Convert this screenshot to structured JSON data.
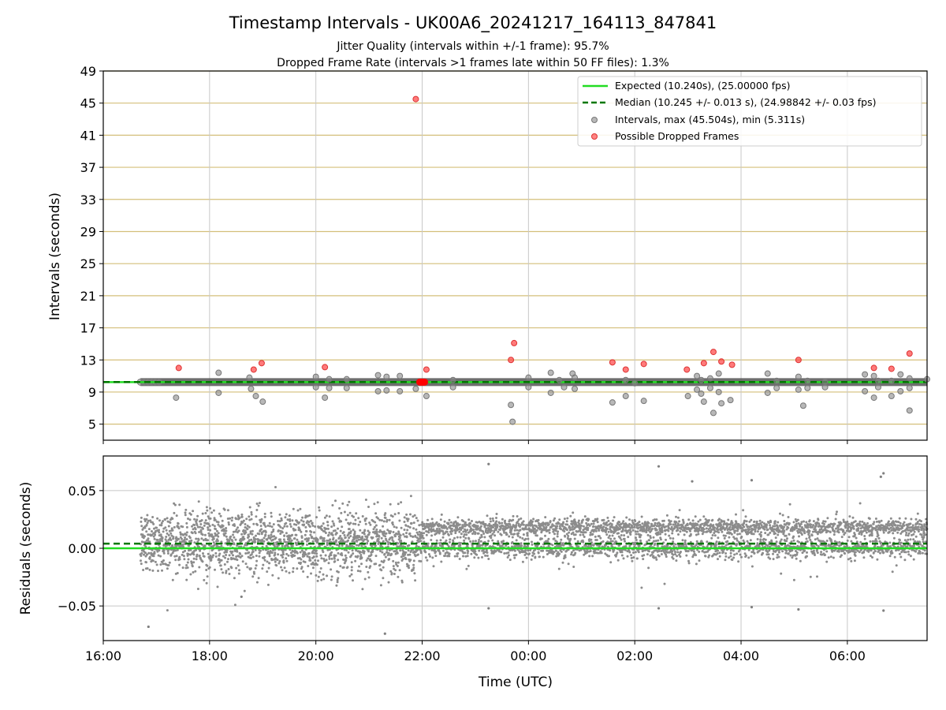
{
  "chart_data": {
    "title": "Timestamp Intervals - UK00A6_20241217_164113_847841",
    "subtitles": [
      "Jitter Quality (intervals within +/-1 frame): 95.7%",
      "Dropped Frame Rate (intervals >1 frames late within 50 FF files): 1.3%"
    ],
    "xlabel": "Time (UTC)",
    "x_tick_labels": [
      "16:00",
      "18:00",
      "20:00",
      "22:00",
      "00:00",
      "02:00",
      "04:00",
      "06:00"
    ],
    "x_tick_hours": [
      0,
      2,
      4,
      6,
      8,
      10,
      12,
      14
    ],
    "x_range_hours": [
      0,
      15.5
    ],
    "x_origin": "2024-12-17 16:00 UTC",
    "top": {
      "type": "scatter",
      "ylabel": "Intervals (seconds)",
      "ylim": [
        3,
        49
      ],
      "y_ticks": [
        5,
        9,
        13,
        17,
        21,
        25,
        29,
        33,
        37,
        41,
        45,
        49
      ],
      "grid_color": "#d4bf7a",
      "expected": 10.24,
      "median": 10.245,
      "series": [
        {
          "name": "Expected (10.240s), (25.00000 fps)",
          "color": "#22dd22",
          "style": "solid-line"
        },
        {
          "name": "Median (10.245 +/- 0.013 s), (24.98842 +/- 0.03 fps)",
          "color": "#007700",
          "style": "dashed-line"
        },
        {
          "name": "Intervals, max (45.504s), min (5.311s)",
          "color": "#888888",
          "style": "point",
          "points": [
            [
              17.37,
              8.3
            ],
            [
              18.17,
              11.4
            ],
            [
              18.17,
              8.9
            ],
            [
              18.75,
              10.8
            ],
            [
              18.78,
              9.4
            ],
            [
              18.87,
              8.5
            ],
            [
              19.0,
              7.8
            ],
            [
              20.0,
              10.9
            ],
            [
              20.0,
              9.6
            ],
            [
              20.17,
              8.3
            ],
            [
              20.25,
              10.6
            ],
            [
              20.25,
              9.5
            ],
            [
              20.58,
              10.6
            ],
            [
              20.58,
              9.5
            ],
            [
              21.17,
              11.1
            ],
            [
              21.17,
              9.1
            ],
            [
              21.33,
              10.9
            ],
            [
              21.33,
              9.2
            ],
            [
              21.58,
              11.0
            ],
            [
              21.58,
              9.1
            ],
            [
              21.88,
              9.4
            ],
            [
              22.08,
              8.5
            ],
            [
              22.58,
              10.5
            ],
            [
              22.58,
              9.6
            ],
            [
              23.67,
              7.4
            ],
            [
              23.7,
              5.3
            ],
            [
              24.0,
              10.8
            ],
            [
              24.0,
              9.6
            ],
            [
              24.42,
              11.4
            ],
            [
              24.42,
              8.9
            ],
            [
              24.58,
              10.5
            ],
            [
              24.67,
              9.6
            ],
            [
              24.83,
              11.3
            ],
            [
              24.87,
              10.8
            ],
            [
              24.87,
              9.4
            ],
            [
              25.58,
              7.7
            ],
            [
              25.83,
              10.5
            ],
            [
              25.83,
              8.5
            ],
            [
              26.0,
              10.1
            ],
            [
              26.17,
              7.9
            ],
            [
              27.0,
              8.5
            ],
            [
              27.17,
              11.0
            ],
            [
              27.17,
              9.3
            ],
            [
              27.25,
              10.5
            ],
            [
              27.25,
              8.8
            ],
            [
              27.3,
              7.8
            ],
            [
              27.42,
              10.7
            ],
            [
              27.42,
              9.5
            ],
            [
              27.48,
              6.4
            ],
            [
              27.58,
              11.3
            ],
            [
              27.58,
              9.0
            ],
            [
              27.63,
              7.6
            ],
            [
              27.8,
              8.0
            ],
            [
              28.5,
              11.3
            ],
            [
              28.5,
              8.9
            ],
            [
              28.67,
              10.4
            ],
            [
              28.67,
              9.5
            ],
            [
              29.08,
              10.9
            ],
            [
              29.08,
              9.3
            ],
            [
              29.17,
              7.3
            ],
            [
              29.25,
              10.4
            ],
            [
              29.25,
              9.5
            ],
            [
              29.58,
              10.3
            ],
            [
              29.58,
              9.6
            ],
            [
              30.33,
              11.2
            ],
            [
              30.33,
              9.1
            ],
            [
              30.5,
              11.0
            ],
            [
              30.5,
              8.3
            ],
            [
              30.58,
              10.4
            ],
            [
              30.58,
              9.6
            ],
            [
              30.83,
              10.4
            ],
            [
              30.83,
              8.5
            ],
            [
              31.0,
              11.2
            ],
            [
              31.0,
              9.1
            ],
            [
              31.17,
              10.7
            ],
            [
              31.17,
              9.5
            ],
            [
              31.5,
              10.6
            ],
            [
              31.17,
              6.7
            ]
          ]
        },
        {
          "name": "Possible Dropped Frames",
          "color": "#ff3333",
          "style": "point",
          "points": [
            [
              17.42,
              12.0
            ],
            [
              18.83,
              11.8
            ],
            [
              18.98,
              12.6
            ],
            [
              20.17,
              12.1
            ],
            [
              21.88,
              45.5
            ],
            [
              22.08,
              11.8
            ],
            [
              23.67,
              13.0
            ],
            [
              23.73,
              15.1
            ],
            [
              25.58,
              12.7
            ],
            [
              25.83,
              11.8
            ],
            [
              26.17,
              12.5
            ],
            [
              26.98,
              11.8
            ],
            [
              27.3,
              12.6
            ],
            [
              27.48,
              14.0
            ],
            [
              27.63,
              12.8
            ],
            [
              27.83,
              12.4
            ],
            [
              29.08,
              13.0
            ],
            [
              30.5,
              12.0
            ],
            [
              30.83,
              11.9
            ],
            [
              31.17,
              13.8
            ]
          ]
        }
      ],
      "cluster": {
        "name": "Possible Dropped Frames",
        "at_hour": 22.0,
        "value": 10.24
      }
    },
    "bottom": {
      "type": "scatter",
      "ylabel": "Residuals (seconds)",
      "ylim": [
        -0.08,
        0.08
      ],
      "y_ticks": [
        -0.05,
        0.0,
        0.05
      ],
      "y_tick_labels": [
        "−0.05",
        "0.00",
        "0.05"
      ],
      "expected_line": 0.0,
      "median_line": 0.004,
      "residual_start_hours": 0.7,
      "residual_end_hours": 15.5,
      "outliers": [
        [
          0.85,
          -0.068
        ],
        [
          2.6,
          -0.042
        ],
        [
          5.3,
          -0.074
        ],
        [
          7.25,
          0.073
        ],
        [
          7.25,
          -0.052
        ],
        [
          10.45,
          0.071
        ],
        [
          10.45,
          -0.052
        ],
        [
          11.08,
          0.058
        ],
        [
          12.2,
          -0.051
        ],
        [
          13.08,
          -0.053
        ],
        [
          12.2,
          0.059
        ],
        [
          14.63,
          0.062
        ],
        [
          14.68,
          0.065
        ],
        [
          14.68,
          -0.054
        ]
      ],
      "point_color": "#808080"
    }
  }
}
